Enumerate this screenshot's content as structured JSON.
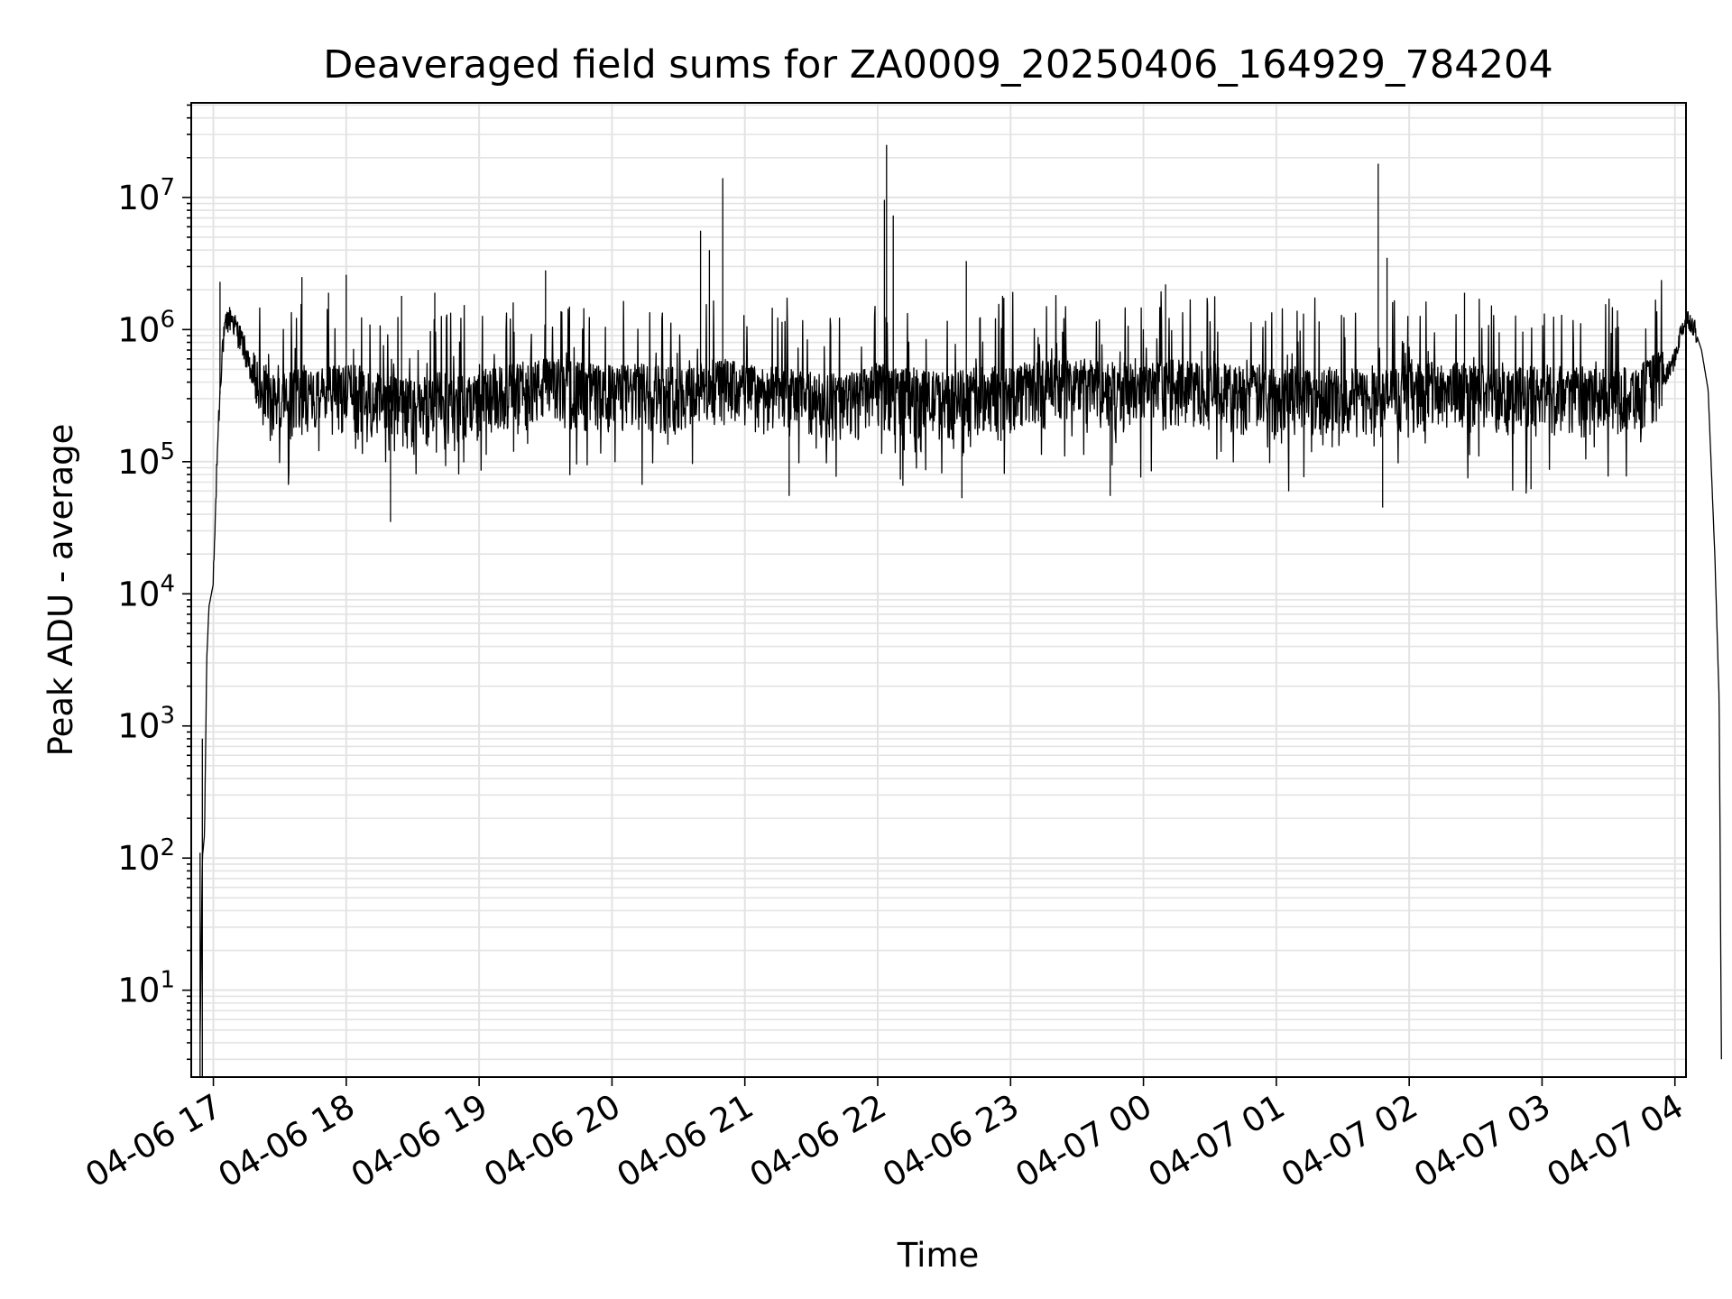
{
  "chart_data": {
    "type": "line",
    "title": "Deaveraged field sums for ZA0009_20250406_164929_784204",
    "xlabel": "Time",
    "ylabel": "Peak ADU - average",
    "yscale": "log",
    "ylim": [
      2.2,
      52000000
    ],
    "xlim": [
      "2025-04-06 16:50",
      "2025-04-07 04:05"
    ],
    "grid": true,
    "line_color": "#000000",
    "grid_color": "#e3e3e3",
    "x_tick_labels": [
      {
        "t": "2025-04-06 17:00",
        "label": "04-06 17"
      },
      {
        "t": "2025-04-06 18:00",
        "label": "04-06 18"
      },
      {
        "t": "2025-04-06 19:00",
        "label": "04-06 19"
      },
      {
        "t": "2025-04-06 20:00",
        "label": "04-06 20"
      },
      {
        "t": "2025-04-06 21:00",
        "label": "04-06 21"
      },
      {
        "t": "2025-04-06 22:00",
        "label": "04-06 22"
      },
      {
        "t": "2025-04-06 23:00",
        "label": "04-06 23"
      },
      {
        "t": "2025-04-07 00:00",
        "label": "04-07 00"
      },
      {
        "t": "2025-04-07 01:00",
        "label": "04-07 01"
      },
      {
        "t": "2025-04-07 02:00",
        "label": "04-07 02"
      },
      {
        "t": "2025-04-07 03:00",
        "label": "04-07 03"
      },
      {
        "t": "2025-04-07 04:00",
        "label": "04-07 04"
      }
    ],
    "y_ticks": [
      {
        "value": 10,
        "base": "10",
        "exp": "1"
      },
      {
        "value": 100,
        "base": "10",
        "exp": "2"
      },
      {
        "value": 1000,
        "base": "10",
        "exp": "3"
      },
      {
        "value": 10000,
        "base": "10",
        "exp": "4"
      },
      {
        "value": 100000,
        "base": "10",
        "exp": "5"
      },
      {
        "value": 1000000,
        "base": "10",
        "exp": "6"
      },
      {
        "value": 10000000,
        "base": "10",
        "exp": "7"
      }
    ],
    "series": [
      {
        "x": [
          "2025-04-06 16:54",
          "2025-04-06 16:55",
          "2025-04-06 16:56",
          "2025-04-06 16:57",
          "2025-04-06 16:58",
          "2025-04-06 17:00",
          "2025-04-06 17:02",
          "2025-04-06 17:04",
          "2025-04-06 17:06",
          "2025-04-06 17:08",
          "2025-04-06 17:10",
          "2025-04-06 17:12",
          "2025-04-06 17:14",
          "2025-04-06 17:16",
          "2025-04-06 17:18",
          "2025-04-06 17:20",
          "2025-04-06 17:25",
          "2025-04-06 17:30",
          "2025-04-06 17:35",
          "2025-04-06 17:40",
          "2025-04-06 17:45",
          "2025-04-06 17:50",
          "2025-04-06 18:00",
          "2025-04-06 18:10",
          "2025-04-06 18:20",
          "2025-04-06 18:30",
          "2025-04-06 18:40",
          "2025-04-06 18:50",
          "2025-04-06 19:00",
          "2025-04-06 19:15",
          "2025-04-06 19:30",
          "2025-04-06 19:45",
          "2025-04-06 20:00",
          "2025-04-06 20:15",
          "2025-04-06 20:30",
          "2025-04-06 20:45",
          "2025-04-06 20:50",
          "2025-04-06 21:00",
          "2025-04-06 21:15",
          "2025-04-06 21:30",
          "2025-04-06 21:45",
          "2025-04-06 22:00",
          "2025-04-06 22:03",
          "2025-04-06 22:15",
          "2025-04-06 22:30",
          "2025-04-06 22:45",
          "2025-04-06 23:00",
          "2025-04-06 23:15",
          "2025-04-06 23:30",
          "2025-04-06 23:45",
          "2025-04-07 00:00",
          "2025-04-07 00:15",
          "2025-04-07 00:30",
          "2025-04-07 00:45",
          "2025-04-07 01:00",
          "2025-04-07 01:15",
          "2025-04-07 01:30",
          "2025-04-07 01:45",
          "2025-04-07 02:00",
          "2025-04-07 02:15",
          "2025-04-07 02:30",
          "2025-04-07 02:45",
          "2025-04-07 03:00",
          "2025-04-07 03:15",
          "2025-04-07 03:30",
          "2025-04-07 03:45",
          "2025-04-07 03:55",
          "2025-04-07 04:00",
          "2025-04-07 04:03",
          "2025-04-07 04:06",
          "2025-04-07 04:09",
          "2025-04-07 04:12",
          "2025-04-07 04:15",
          "2025-04-07 04:18",
          "2025-04-07 04:20",
          "2025-04-07 04:21"
        ],
        "y": [
          4,
          100,
          150,
          3200,
          8000,
          12000,
          150000,
          700000,
          1100000,
          1200000,
          1000000,
          850000,
          700000,
          500000,
          400000,
          330000,
          280000,
          250000,
          270000,
          290000,
          260000,
          280000,
          300000,
          280000,
          250000,
          220000,
          260000,
          240000,
          260000,
          300000,
          330000,
          310000,
          290000,
          300000,
          290000,
          320000,
          330000,
          300000,
          280000,
          260000,
          250000,
          290000,
          300000,
          270000,
          260000,
          280000,
          300000,
          320000,
          330000,
          310000,
          300000,
          320000,
          310000,
          290000,
          300000,
          290000,
          280000,
          260000,
          300000,
          310000,
          300000,
          290000,
          280000,
          290000,
          270000,
          300000,
          400000,
          600000,
          1000000,
          1200000,
          1000000,
          700000,
          350000,
          20000,
          1500,
          3
        ]
      }
    ],
    "spikes": [
      {
        "x": "2025-04-06 17:03",
        "y": 2300000
      },
      {
        "x": "2025-04-06 17:40",
        "y": 2500000
      },
      {
        "x": "2025-04-06 17:52",
        "y": 1900000
      },
      {
        "x": "2025-04-06 18:00",
        "y": 2600000
      },
      {
        "x": "2025-04-06 18:20",
        "y": 35000
      },
      {
        "x": "2025-04-06 18:25",
        "y": 1800000
      },
      {
        "x": "2025-04-06 18:40",
        "y": 1900000
      },
      {
        "x": "2025-04-06 19:30",
        "y": 2800000
      },
      {
        "x": "2025-04-06 20:40",
        "y": 5600000
      },
      {
        "x": "2025-04-06 20:44",
        "y": 4000000
      },
      {
        "x": "2025-04-06 20:50",
        "y": 14000000
      },
      {
        "x": "2025-04-06 21:20",
        "y": 55000
      },
      {
        "x": "2025-04-06 22:03",
        "y": 9600000
      },
      {
        "x": "2025-04-06 22:04",
        "y": 25000000
      },
      {
        "x": "2025-04-06 22:07",
        "y": 7300000
      },
      {
        "x": "2025-04-06 22:40",
        "y": 3300000
      },
      {
        "x": "2025-04-06 22:38",
        "y": 53000
      },
      {
        "x": "2025-04-06 23:45",
        "y": 55000
      },
      {
        "x": "2025-04-07 00:10",
        "y": 2200000
      },
      {
        "x": "2025-04-07 01:46",
        "y": 18000000
      },
      {
        "x": "2025-04-07 01:48",
        "y": 45000
      },
      {
        "x": "2025-04-07 01:50",
        "y": 3500000
      },
      {
        "x": "2025-04-07 02:25",
        "y": 1900000
      },
      {
        "x": "2025-04-07 02:55",
        "y": 62000
      }
    ]
  }
}
